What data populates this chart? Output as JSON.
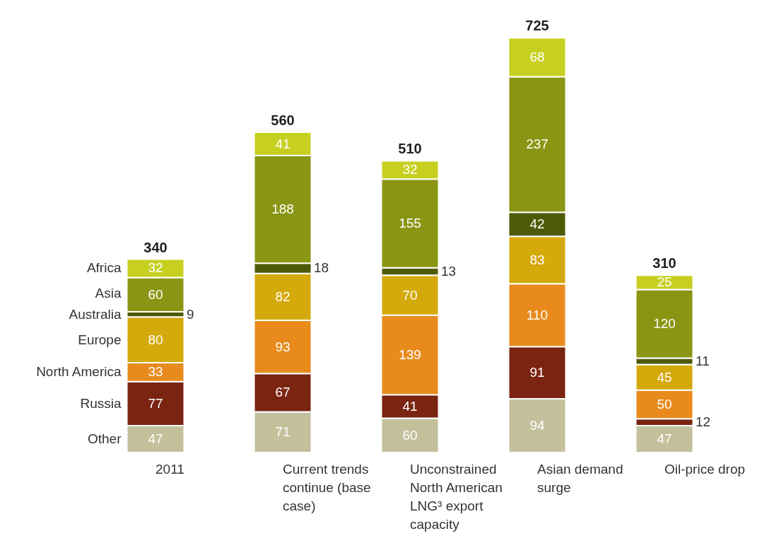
{
  "chart_data": {
    "type": "bar",
    "stacked": true,
    "data_labels": true,
    "legend": "left",
    "categories": [
      "2011",
      "Current trends continue (base case)",
      "Unconstrained North American LNG³ export capacity",
      "Asian demand surge",
      "Oil-price drop"
    ],
    "series": [
      {
        "name": "Other",
        "color": "#c4c09c",
        "values": [
          47,
          71,
          60,
          94,
          47
        ]
      },
      {
        "name": "Russia",
        "color": "#7a2412",
        "values": [
          77,
          67,
          41,
          91,
          12
        ]
      },
      {
        "name": "North America",
        "color": "#e88b1c",
        "values": [
          33,
          93,
          139,
          110,
          50
        ]
      },
      {
        "name": "Europe",
        "color": "#d4a90b",
        "values": [
          80,
          82,
          70,
          83,
          45
        ]
      },
      {
        "name": "Australia",
        "color": "#4e5a05",
        "values": [
          9,
          18,
          13,
          42,
          11
        ]
      },
      {
        "name": "Asia",
        "color": "#8a9613",
        "values": [
          60,
          188,
          155,
          237,
          120
        ]
      },
      {
        "name": "Africa",
        "color": "#c7d020",
        "values": [
          32,
          41,
          32,
          68,
          25
        ]
      }
    ],
    "totals": [
      "340",
      "560",
      "510",
      "725",
      "310"
    ]
  }
}
